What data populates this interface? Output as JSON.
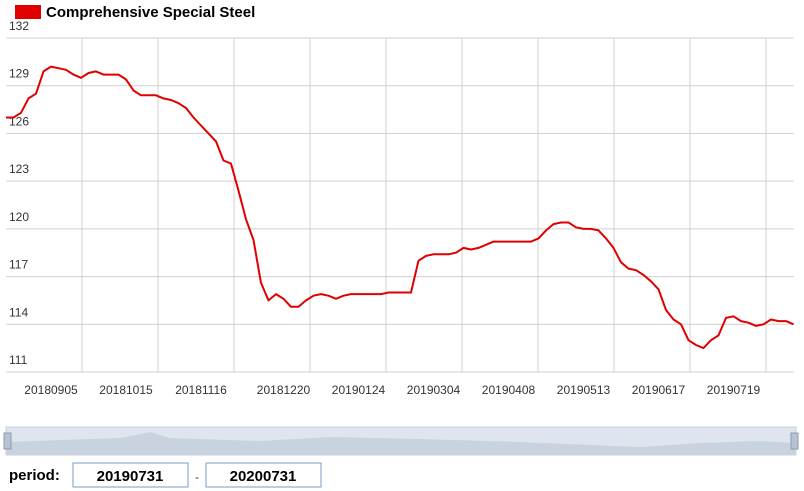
{
  "chart_data": {
    "type": "line",
    "categories": [
      null,
      null,
      null,
      null,
      null,
      null,
      "20180905",
      null,
      null,
      null,
      null,
      null,
      null,
      null,
      null,
      null,
      "20181015",
      null,
      null,
      null,
      null,
      null,
      null,
      null,
      null,
      null,
      "20181116",
      null,
      null,
      null,
      null,
      null,
      null,
      null,
      null,
      null,
      null,
      "20181220",
      null,
      null,
      null,
      null,
      null,
      null,
      null,
      null,
      null,
      "20190124",
      null,
      null,
      null,
      null,
      null,
      null,
      null,
      null,
      null,
      "20190304",
      null,
      null,
      null,
      null,
      null,
      null,
      null,
      null,
      null,
      "20190408",
      null,
      null,
      null,
      null,
      null,
      null,
      null,
      null,
      null,
      "20190513",
      null,
      null,
      null,
      null,
      null,
      null,
      null,
      null,
      null,
      "20190617",
      null,
      null,
      null,
      null,
      null,
      null,
      null,
      null,
      null,
      "20190719",
      null,
      null,
      null,
      null,
      null,
      null,
      null,
      null
    ],
    "series": [
      {
        "name": "Comprehensive Special Steel",
        "color": "#e00000",
        "values": [
          127.0,
          127.0,
          127.3,
          128.2,
          128.5,
          129.9,
          130.2,
          130.1,
          130.0,
          129.7,
          129.5,
          129.8,
          129.9,
          129.7,
          129.7,
          129.7,
          129.4,
          128.7,
          128.4,
          128.4,
          128.4,
          128.2,
          128.1,
          127.9,
          127.6,
          127.0,
          126.5,
          126.0,
          125.5,
          124.3,
          124.1,
          122.4,
          120.6,
          119.3,
          116.6,
          115.5,
          115.9,
          115.6,
          115.1,
          115.1,
          115.5,
          115.8,
          115.9,
          115.8,
          115.6,
          115.8,
          115.9,
          115.9,
          115.9,
          115.9,
          115.9,
          116.0,
          116.0,
          116.0,
          116.0,
          118.0,
          118.3,
          118.4,
          118.4,
          118.4,
          118.5,
          118.8,
          118.7,
          118.8,
          119.0,
          119.2,
          119.2,
          119.2,
          119.2,
          119.2,
          119.2,
          119.4,
          119.9,
          120.3,
          120.4,
          120.4,
          120.1,
          120.0,
          120.0,
          119.9,
          119.4,
          118.8,
          117.9,
          117.5,
          117.4,
          117.1,
          116.7,
          116.2,
          114.9,
          114.3,
          114.0,
          113.0,
          112.7,
          112.5,
          113.0,
          113.3,
          114.4,
          114.5,
          114.2,
          114.1,
          113.9,
          114.0,
          114.3,
          114.2,
          114.2,
          114.0
        ]
      }
    ],
    "ylim": [
      111,
      132
    ],
    "yticks": [
      111,
      114,
      117,
      120,
      123,
      126,
      129,
      132
    ],
    "grid": true
  },
  "controls": {
    "period_label": "period:",
    "start": "20190731",
    "separator": "-",
    "end": "20200731"
  }
}
